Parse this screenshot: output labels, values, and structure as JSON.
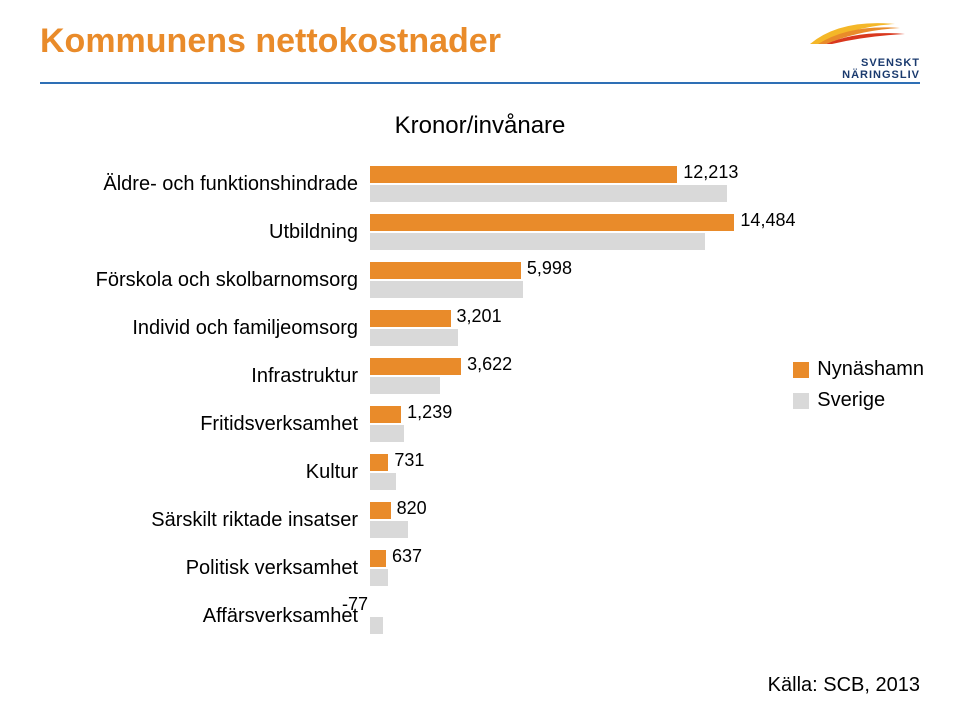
{
  "title": "Kommunens nettokostnader",
  "subtitle": "Kronor/invånare",
  "title_color": "#e98b2a",
  "rule_color": "#2e6fb5",
  "source": "Källa: SCB, 2013",
  "logo_text": "SVENSKT NÄRINGSLIV",
  "legend": [
    {
      "label": "Nynäshamn",
      "color": "#e98b2a"
    },
    {
      "label": "Sverige",
      "color": "#d9d9d9"
    }
  ],
  "chart": {
    "type": "bar-horizontal-grouped",
    "xmax": 15500,
    "bar_a_color": "#e98b2a",
    "bar_b_color": "#d9d9d9",
    "categories": [
      {
        "label": "Äldre- och funktionshindrade",
        "a": 12213,
        "a_label": "12,213",
        "b": 14200
      },
      {
        "label": "Utbildning",
        "a": 14484,
        "a_label": "14,484",
        "b": 13300
      },
      {
        "label": "Förskola och skolbarnomsorg",
        "a": 5998,
        "a_label": "5,998",
        "b": 6100
      },
      {
        "label": "Individ och familjeomsorg",
        "a": 3201,
        "a_label": "3,201",
        "b": 3500
      },
      {
        "label": "Infrastruktur",
        "a": 3622,
        "a_label": "3,622",
        "b": 2800
      },
      {
        "label": "Fritidsverksamhet",
        "a": 1239,
        "a_label": "1,239",
        "b": 1350
      },
      {
        "label": "Kultur",
        "a": 731,
        "a_label": "731",
        "b": 1050
      },
      {
        "label": "Särskilt riktade insatser",
        "a": 820,
        "a_label": "820",
        "b": 1500
      },
      {
        "label": "Politisk verksamhet",
        "a": 637,
        "a_label": "637",
        "b": 700
      },
      {
        "label": "Affärsverksamhet",
        "a": -77,
        "a_label": "-77",
        "b": 500
      }
    ]
  }
}
